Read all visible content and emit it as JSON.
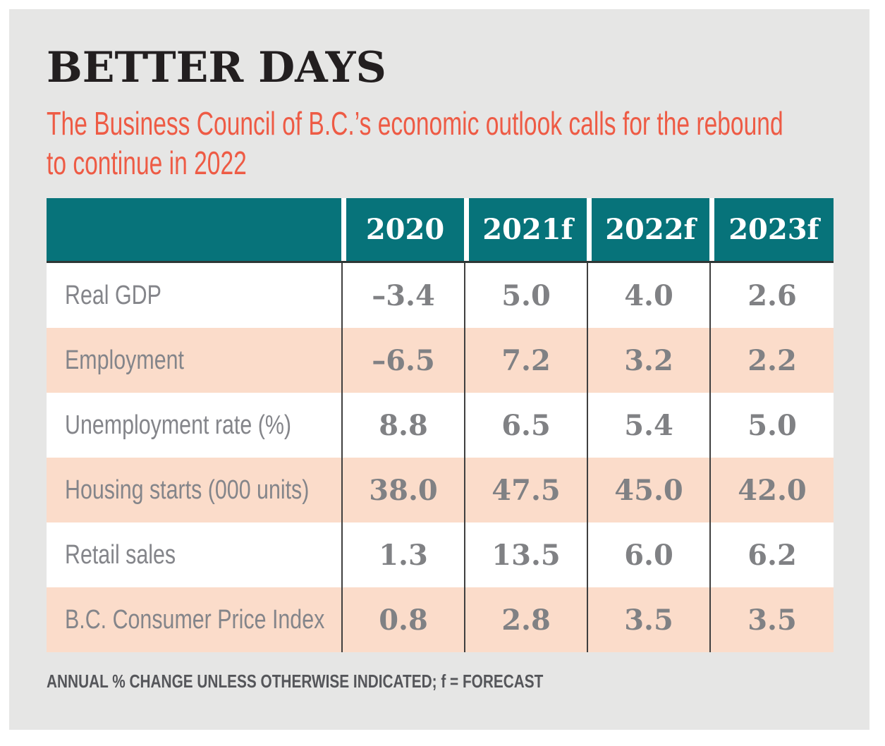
{
  "title": "BETTER DAYS",
  "subtitle": {
    "line1": "The Business Council of B.C.’s economic outlook calls for the rebound",
    "line2": "to continue in 2022"
  },
  "footnote": "ANNUAL % CHANGE UNLESS OTHERWISE INDICATED; f = FORECAST",
  "colors": {
    "panel_background": "#e6e6e5",
    "frame_white": "#ffffff",
    "header_teal": "#07737a",
    "row_pink": "#fbdcca",
    "row_white": "#ffffff",
    "subtitle_red": "#ee5b45",
    "title_black": "#231f20",
    "table_text_gray": "#808184",
    "note_gray": "#55565a",
    "column_divider": "#3f3f3f",
    "header_underline": "#2e3736"
  },
  "chart_data": {
    "type": "table",
    "title": "BETTER DAYS",
    "subtitle": "The Business Council of B.C.’s economic outlook calls for the rebound to continue in 2022",
    "columns": [
      "",
      "2020",
      "2021f",
      "2022f",
      "2023f"
    ],
    "rows": [
      {
        "label": "Real GDP",
        "values": [
          "–3.4",
          "5.0",
          "4.0",
          "2.6"
        ]
      },
      {
        "label": "Employment",
        "values": [
          "–6.5",
          "7.2",
          "3.2",
          "2.2"
        ]
      },
      {
        "label": "Unemployment rate (%)",
        "values": [
          "8.8",
          "6.5",
          "5.4",
          "5.0"
        ]
      },
      {
        "label": "Housing starts (000 units)",
        "values": [
          "38.0",
          "47.5",
          "45.0",
          "42.0"
        ]
      },
      {
        "label": "Retail sales",
        "values": [
          "1.3",
          "13.5",
          "6.0",
          "6.2"
        ]
      },
      {
        "label": "B.C. Consumer Price Index",
        "values": [
          "0.8",
          "2.8",
          "3.5",
          "3.5"
        ]
      }
    ],
    "note": "ANNUAL % CHANGE UNLESS OTHERWISE INDICATED; f = FORECAST",
    "layout": "alternating row stripes (white/pink), teal header band, thin dark column dividers, grid off elsewhere"
  }
}
